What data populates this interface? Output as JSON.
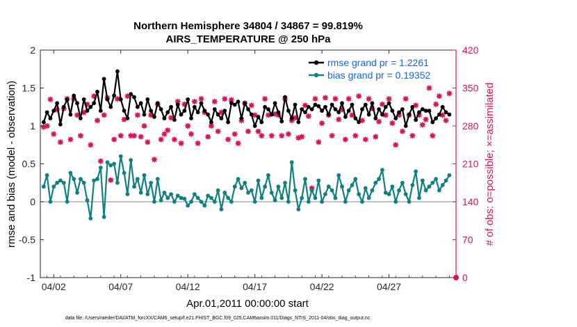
{
  "figure": {
    "title_line1": "Northern Hemisphere 34804 / 34867 = 99.819%",
    "title_line2": "AIRS_TEMPERATURE @ 250 hPa",
    "footer": "data file: /Users/raeder/DAI/ATM_forcXX/CAM6_setup/f.e21.FHIST_BGC.f09_025.CAM6assim.011/Diags_NTrS_2011-04/obs_diag_output.nc"
  },
  "chart_data": {
    "type": "line",
    "title": "Northern Hemisphere 34804 / 34867 = 99.819%",
    "subtitle": "AIRS_TEMPERATURE @ 250 hPa",
    "xlabel": "Apr.01,2011 00:00:00 start",
    "ylabel": "rmse and bias (model - observation)",
    "y2label": "# of obs: o=possible; ×=assimilated",
    "xlim": [
      0.5,
      31.5
    ],
    "ylim": [
      -1,
      2
    ],
    "y2lim": [
      0,
      420
    ],
    "xticks": [
      1.5,
      6.5,
      11.5,
      16.5,
      21.5,
      26.5
    ],
    "xticklabels": [
      "04/02",
      "04/07",
      "04/12",
      "04/17",
      "04/22",
      "04/27"
    ],
    "yticks": [
      -1,
      -0.5,
      0,
      0.5,
      1,
      1.5,
      2
    ],
    "yticklabels": [
      "-1",
      "-0.5",
      "0",
      "0.5",
      "1",
      "1.5",
      "2"
    ],
    "y2ticks": [
      0,
      70,
      140,
      210,
      280,
      350,
      420
    ],
    "y2ticklabels": [
      "0",
      "70",
      "140",
      "210",
      "280",
      "350",
      "420"
    ],
    "grid": false,
    "legend_position": "top-right",
    "colors": {
      "rmse": "#000000",
      "bias": "#0f7f7f",
      "obs": "#d6145c",
      "zero_line": "#b0b0b0"
    },
    "series": [
      {
        "name": "rmse grand pr = 1.2261",
        "axis": "left",
        "x": [
          0.75,
          1.0,
          1.25,
          1.5,
          1.75,
          2.0,
          2.25,
          2.5,
          2.75,
          3.0,
          3.25,
          3.5,
          3.75,
          4.0,
          4.25,
          4.5,
          4.75,
          5.0,
          5.25,
          5.5,
          5.75,
          6.0,
          6.25,
          6.5,
          6.75,
          7.0,
          7.25,
          7.5,
          7.75,
          8.0,
          8.25,
          8.5,
          8.75,
          9.0,
          9.25,
          9.5,
          9.75,
          10.0,
          10.25,
          10.5,
          10.75,
          11.0,
          11.25,
          11.5,
          11.75,
          12.0,
          12.25,
          12.5,
          12.75,
          13.0,
          13.25,
          13.5,
          13.75,
          14.0,
          14.25,
          14.5,
          14.75,
          15.0,
          15.25,
          15.5,
          15.75,
          16.0,
          16.25,
          16.5,
          16.75,
          17.0,
          17.25,
          17.5,
          17.75,
          18.0,
          18.25,
          18.5,
          18.75,
          19.0,
          19.25,
          19.5,
          19.75,
          20.0,
          20.25,
          20.5,
          20.75,
          21.0,
          21.25,
          21.5,
          21.75,
          22.0,
          22.25,
          22.5,
          22.75,
          23.0,
          23.25,
          23.5,
          23.75,
          24.0,
          24.25,
          24.5,
          24.75,
          25.0,
          25.25,
          25.5,
          25.75,
          26.0,
          26.25,
          26.5,
          26.75,
          27.0,
          27.25,
          27.5,
          27.75,
          28.0,
          28.25,
          28.5,
          28.75,
          29.0,
          29.25,
          29.5,
          29.75,
          30.0,
          30.25,
          30.5,
          30.75,
          31.0
        ],
        "values": [
          1.05,
          1.18,
          1.1,
          1.2,
          1.3,
          1.02,
          1.25,
          1.35,
          1.15,
          1.4,
          1.3,
          1.1,
          1.35,
          1.2,
          1.25,
          1.3,
          1.45,
          1.2,
          1.62,
          1.35,
          1.25,
          1.4,
          1.72,
          1.35,
          1.2,
          1.1,
          1.42,
          1.38,
          1.25,
          1.3,
          1.15,
          1.35,
          1.2,
          1.12,
          1.3,
          1.22,
          1.1,
          1.18,
          1.25,
          1.08,
          1.28,
          1.15,
          1.2,
          1.35,
          1.1,
          1.25,
          1.18,
          1.3,
          1.2,
          1.15,
          1.05,
          1.22,
          1.15,
          1.1,
          1.2,
          1.05,
          1.3,
          1.28,
          1.32,
          1.1,
          1.3,
          1.22,
          1.15,
          1.0,
          1.12,
          1.05,
          1.25,
          1.22,
          1.15,
          1.3,
          1.18,
          1.06,
          1.38,
          1.2,
          1.1,
          1.28,
          1.05,
          1.22,
          1.18,
          1.25,
          1.22,
          1.28,
          1.26,
          1.2,
          1.25,
          1.15,
          1.28,
          1.22,
          1.18,
          1.3,
          1.12,
          1.2,
          1.28,
          1.1,
          1.05,
          1.22,
          1.28,
          1.15,
          1.3,
          1.1,
          1.22,
          1.15,
          1.25,
          1.3,
          1.2,
          1.1,
          1.18,
          1.22,
          1.0,
          1.15,
          1.25,
          1.08,
          1.18,
          1.22,
          1.2,
          1.2,
          1.05,
          1.1,
          1.15,
          1.25,
          1.18,
          1.15
        ],
        "markers": [
          "o",
          "x"
        ]
      },
      {
        "name": "bias grand pr = 0.19352",
        "axis": "left",
        "x": [
          0.75,
          1.0,
          1.25,
          1.5,
          1.75,
          2.0,
          2.25,
          2.5,
          2.75,
          3.0,
          3.25,
          3.5,
          3.75,
          4.0,
          4.25,
          4.5,
          4.75,
          5.0,
          5.25,
          5.5,
          5.75,
          6.0,
          6.25,
          6.5,
          6.75,
          7.0,
          7.25,
          7.5,
          7.75,
          8.0,
          8.25,
          8.5,
          8.75,
          9.0,
          9.25,
          9.5,
          9.75,
          10.0,
          10.25,
          10.5,
          10.75,
          11.0,
          11.25,
          11.5,
          11.75,
          12.0,
          12.25,
          12.5,
          12.75,
          13.0,
          13.25,
          13.5,
          13.75,
          14.0,
          14.25,
          14.5,
          14.75,
          15.0,
          15.25,
          15.5,
          15.75,
          16.0,
          16.25,
          16.5,
          16.75,
          17.0,
          17.25,
          17.5,
          17.75,
          18.0,
          18.25,
          18.5,
          18.75,
          19.0,
          19.25,
          19.5,
          19.75,
          20.0,
          20.25,
          20.5,
          20.75,
          21.0,
          21.25,
          21.5,
          21.75,
          22.0,
          22.25,
          22.5,
          22.75,
          23.0,
          23.25,
          23.5,
          23.75,
          24.0,
          24.25,
          24.5,
          24.75,
          25.0,
          25.25,
          25.5,
          25.75,
          26.0,
          26.25,
          26.5,
          26.75,
          27.0,
          27.25,
          27.5,
          27.75,
          28.0,
          28.25,
          28.5,
          28.75,
          29.0,
          29.25,
          29.5,
          29.75,
          30.0,
          30.25,
          30.5,
          30.75,
          31.0
        ],
        "values": [
          0.2,
          0.35,
          0.0,
          0.2,
          0.25,
          0.28,
          0.25,
          0.0,
          0.38,
          0.3,
          0.12,
          0.3,
          0.25,
          0.02,
          -0.22,
          0.28,
          0.3,
          0.45,
          -0.2,
          0.52,
          0.48,
          0.5,
          0.25,
          0.6,
          0.38,
          0.1,
          0.55,
          0.2,
          0.3,
          0.12,
          0.35,
          0.1,
          0.25,
          0.0,
          0.3,
          0.02,
          0.12,
          0.05,
          0.1,
          0.0,
          0.08,
          0.05,
          0.04,
          -0.05,
          0.0,
          0.1,
          0.05,
          0.0,
          -0.05,
          0.08,
          0.05,
          0.0,
          0.15,
          -0.1,
          0.12,
          0.05,
          0.0,
          0.2,
          0.3,
          0.18,
          0.25,
          0.12,
          0.15,
          0.0,
          0.28,
          0.05,
          0.2,
          0.35,
          0.12,
          0.02,
          0.2,
          0.05,
          0.25,
          0.0,
          0.52,
          0.15,
          -0.1,
          0.05,
          0.3,
          0.0,
          0.15,
          0.05,
          0.28,
          0.0,
          0.1,
          0.2,
          0.15,
          0.05,
          0.35,
          0.2,
          0.0,
          0.15,
          0.22,
          0.3,
          0.1,
          0.0,
          0.18,
          0.05,
          0.15,
          0.25,
          0.3,
          0.42,
          0.12,
          0.1,
          0.2,
          0.0,
          0.15,
          0.25,
          0.1,
          0.0,
          0.22,
          0.4,
          0.05,
          0.28,
          0.15,
          0.2,
          0.25,
          0.3,
          0.15,
          0.22,
          0.28,
          0.35
        ]
      },
      {
        "name": "# of obs possible/assimilated",
        "axis": "right",
        "x": [
          0.75,
          1.0,
          1.25,
          1.5,
          1.75,
          2.0,
          2.25,
          2.5,
          2.75,
          3.0,
          3.25,
          3.5,
          3.75,
          4.0,
          4.25,
          4.5,
          4.75,
          5.0,
          5.25,
          5.5,
          5.75,
          6.0,
          6.25,
          6.5,
          6.75,
          7.0,
          7.25,
          7.5,
          7.75,
          8.0,
          8.25,
          8.5,
          8.75,
          9.0,
          9.25,
          9.5,
          9.75,
          10.0,
          10.25,
          10.5,
          10.75,
          11.0,
          11.25,
          11.5,
          11.75,
          12.0,
          12.25,
          12.5,
          12.75,
          13.0,
          13.25,
          13.5,
          13.75,
          14.0,
          14.25,
          14.5,
          14.75,
          15.0,
          15.25,
          15.5,
          15.75,
          16.0,
          16.25,
          16.5,
          16.75,
          17.0,
          17.25,
          17.5,
          17.75,
          18.0,
          18.25,
          18.5,
          18.75,
          19.0,
          19.25,
          19.5,
          19.75,
          20.0,
          20.25,
          20.5,
          20.75,
          21.0,
          21.25,
          21.5,
          21.75,
          22.0,
          22.25,
          22.5,
          22.75,
          23.0,
          23.25,
          23.5,
          23.75,
          24.0,
          24.25,
          24.5,
          24.75,
          25.0,
          25.25,
          25.5,
          25.75,
          26.0,
          26.25,
          26.5,
          26.75,
          27.0,
          27.25,
          27.5,
          27.75,
          28.0,
          28.25,
          28.5,
          28.75,
          29.0,
          29.25,
          29.5,
          29.75,
          30.0,
          30.25,
          30.5,
          30.75,
          31.0
        ],
        "values": [
          278,
          280,
          329,
          265,
          310,
          250,
          312,
          330,
          255,
          330,
          300,
          262,
          305,
          320,
          245,
          335,
          290,
          215,
          300,
          332,
          180,
          255,
          330,
          262,
          292,
          335,
          262,
          262,
          300,
          260,
          280,
          250,
          300,
          218,
          320,
          255,
          265,
          272,
          295,
          255,
          325,
          248,
          320,
          280,
          265,
          325,
          248,
          330,
          305,
          260,
          280,
          325,
          270,
          305,
          330,
          255,
          328,
          265,
          248,
          290,
          322,
          270,
          318,
          300,
          270,
          262,
          330,
          300,
          262,
          302,
          300,
          262,
          330,
          265,
          290,
          295,
          258,
          260,
          318,
          298,
          165,
          330,
          250,
          285,
          332,
          300,
          262,
          330,
          292,
          310,
          255,
          330,
          300,
          262,
          335,
          290,
          255,
          330,
          312,
          260,
          288,
          320,
          300,
          330,
          285,
          245,
          300,
          270,
          330,
          300,
          262,
          318,
          300,
          282,
          292,
          350,
          262,
          320,
          335,
          300,
          290,
          340
        ]
      }
    ]
  }
}
